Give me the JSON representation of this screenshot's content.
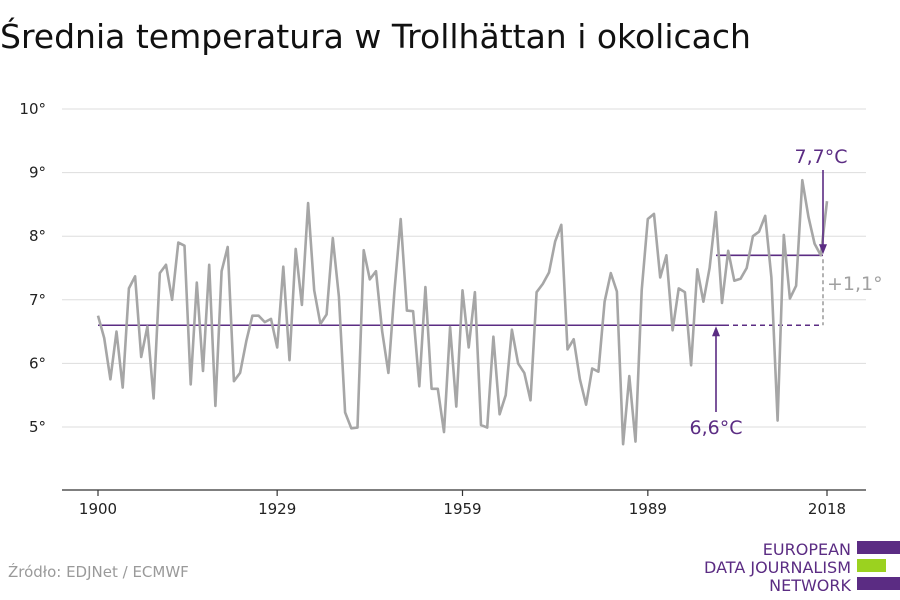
{
  "colors": {
    "series": "#a6a6a6",
    "accent": "#5b2c83",
    "grid": "#dddddd",
    "axis": "#333333",
    "logo_green": "#9bd21f"
  },
  "source": "Źródło: EDJNet / ECMWF",
  "logo": {
    "lines": [
      "EUROPEAN",
      "DATA JOURNALISM",
      "NETWORK"
    ]
  },
  "chart_data": {
    "type": "line",
    "title": "Średnia temperatura w Trollhättan i okolicach",
    "xlabel": "",
    "ylabel": "",
    "xlim": [
      1896,
      2024
    ],
    "ylim": [
      4,
      10
    ],
    "grid": true,
    "y_ticks": [
      {
        "value": 5,
        "label": "5°"
      },
      {
        "value": 6,
        "label": "6°"
      },
      {
        "value": 7,
        "label": "7°"
      },
      {
        "value": 8,
        "label": "8°"
      },
      {
        "value": 9,
        "label": "9°"
      },
      {
        "value": 10,
        "label": "10°"
      }
    ],
    "x_ticks": [
      {
        "value": 1900,
        "label": "1900"
      },
      {
        "value": 1929,
        "label": "1929"
      },
      {
        "value": 1959,
        "label": "1959"
      },
      {
        "value": 1989,
        "label": "1989"
      },
      {
        "value": 2018,
        "label": "2018"
      }
    ],
    "series": [
      {
        "start_year": 1900,
        "values": [
          6.75,
          6.4,
          5.75,
          6.5,
          5.62,
          7.18,
          7.37,
          6.1,
          6.58,
          5.45,
          7.42,
          7.55,
          7.0,
          7.9,
          7.85,
          5.67,
          7.27,
          5.88,
          7.55,
          5.33,
          7.45,
          7.83,
          5.72,
          5.85,
          6.35,
          6.75,
          6.75,
          6.65,
          6.7,
          6.25,
          7.52,
          6.05,
          7.8,
          6.92,
          8.52,
          7.15,
          6.62,
          6.77,
          7.97,
          7.05,
          5.23,
          4.98,
          4.99,
          7.78,
          7.32,
          7.45,
          6.5,
          5.85,
          7.15,
          8.27,
          6.83,
          6.82,
          5.64,
          7.2,
          5.6,
          5.6,
          4.92,
          6.57,
          5.32,
          7.15,
          6.25,
          7.12,
          5.03,
          4.99,
          6.42,
          5.2,
          5.5,
          6.53,
          6.0,
          5.85,
          5.42,
          7.12,
          7.25,
          7.43,
          7.92,
          8.18,
          6.22,
          6.38,
          5.75,
          5.35,
          5.92,
          5.87,
          6.97,
          7.42,
          7.13,
          4.73,
          5.8,
          4.77,
          7.15,
          8.27,
          8.35,
          7.35,
          7.7,
          6.52,
          7.18,
          7.12,
          5.97,
          7.48,
          6.97,
          7.5,
          8.38,
          6.95,
          7.77,
          7.3,
          7.33,
          7.5,
          8.0,
          8.07,
          8.32,
          7.35,
          5.1,
          8.02,
          7.02,
          7.22,
          8.88,
          8.3,
          7.88,
          7.7,
          8.55
        ]
      }
    ],
    "reference_lines": [
      {
        "value": 6.6,
        "label": "6,6°C"
      },
      {
        "value": 7.7,
        "label": "7,7°C"
      }
    ],
    "difference_label": "+1,1°"
  }
}
